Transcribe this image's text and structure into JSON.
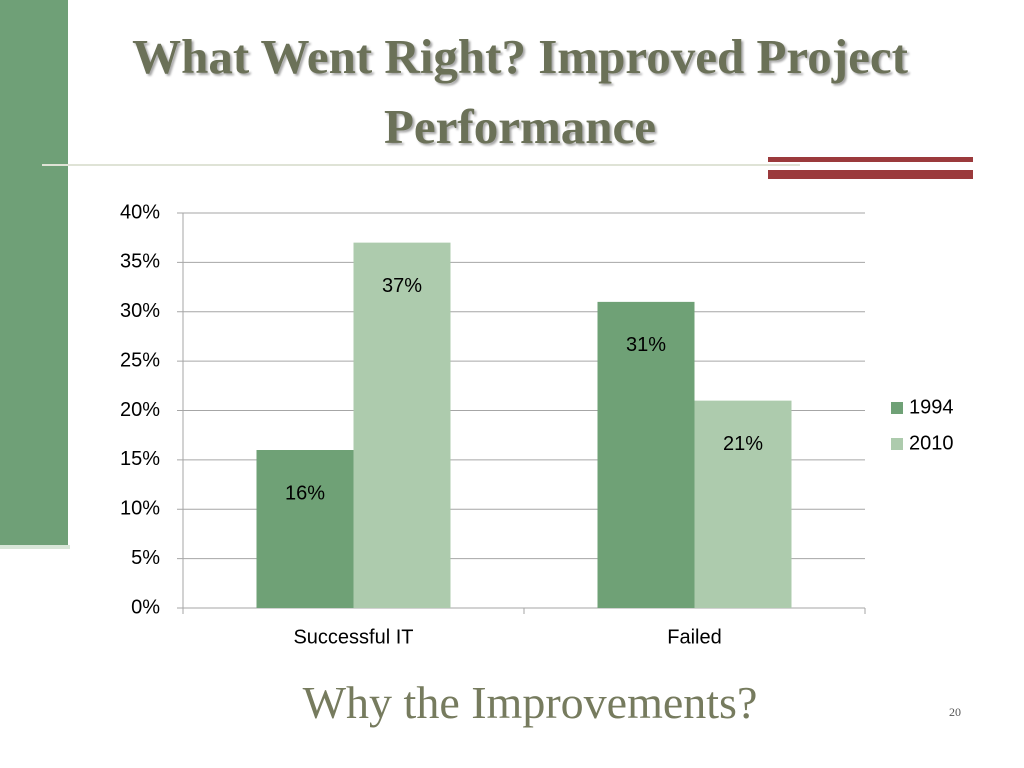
{
  "chart_data": {
    "type": "bar",
    "title": "What Went Right? Improved Project Performance",
    "categories": [
      "Successful IT",
      "Failed"
    ],
    "series": [
      {
        "name": "1994",
        "color": "#6fa176",
        "values": [
          16,
          31
        ],
        "value_labels": [
          "16%",
          "31%"
        ]
      },
      {
        "name": "2010",
        "color": "#adcbad",
        "values": [
          37,
          21
        ],
        "value_labels": [
          "37%",
          "21%"
        ]
      }
    ],
    "ylim": [
      0,
      40
    ],
    "yticks": [
      {
        "value": 0,
        "label": "0%"
      },
      {
        "value": 5,
        "label": "5%"
      },
      {
        "value": 10,
        "label": "10%"
      },
      {
        "value": 15,
        "label": "15%"
      },
      {
        "value": 20,
        "label": "20%"
      },
      {
        "value": 25,
        "label": "25%"
      },
      {
        "value": 30,
        "label": "30%"
      },
      {
        "value": 35,
        "label": "35%"
      },
      {
        "value": 40,
        "label": "40%"
      }
    ],
    "grid": true,
    "legend": "right"
  },
  "slide": {
    "heading": "Why the Improvements?",
    "number": 20
  }
}
